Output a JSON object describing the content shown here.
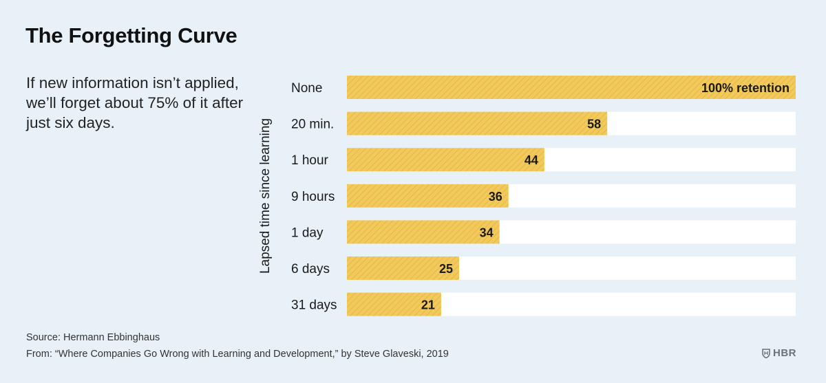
{
  "header": {
    "title": "The Forgetting Curve",
    "subtitle": "If new information isn’t applied, we’ll forget about 75% of it after just six days."
  },
  "footer": {
    "source": "Source: Hermann Ebbinghaus",
    "from": "From: “Where Companies Go Wrong with Learning and Development,” by Steve Glaveski, 2019",
    "brand": "HBR"
  },
  "colors": {
    "background": "#e8f1f7",
    "bar_fill": "#f2c95c",
    "bar_hatch": "#e6b73f",
    "track": "#ffffff",
    "text": "#1a1a1a"
  },
  "chart_data": {
    "type": "bar",
    "orientation": "horizontal",
    "title": "The Forgetting Curve",
    "xlabel": "",
    "ylabel": "Lapsed time since learning",
    "xlim": [
      0,
      100
    ],
    "categories": [
      "None",
      "20 min.",
      "1 hour",
      "9 hours",
      "1 day",
      "6 days",
      "31 days"
    ],
    "values": [
      100,
      58,
      44,
      36,
      34,
      25,
      21
    ],
    "data_labels": [
      "100% retention",
      "58",
      "44",
      "36",
      "34",
      "25",
      "21"
    ],
    "grid": false,
    "legend": "none"
  }
}
